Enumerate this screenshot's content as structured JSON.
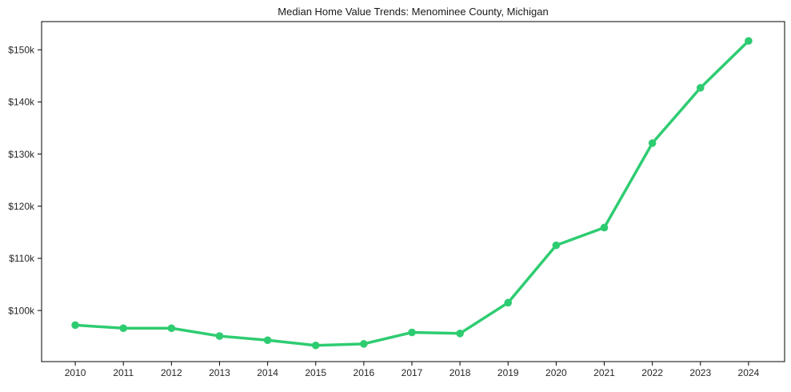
{
  "figure": {
    "background": "#ffffff"
  },
  "chart_data": {
    "type": "line",
    "title": "Median Home Value Trends: Menominee County, Michigan",
    "series": [
      {
        "name": "Median Home Value",
        "x": [
          2010,
          2011,
          2012,
          2013,
          2014,
          2015,
          2016,
          2017,
          2018,
          2019,
          2020,
          2021,
          2022,
          2023,
          2024
        ],
        "values": [
          97200,
          96600,
          96600,
          95100,
          94300,
          93300,
          93600,
          95800,
          95600,
          101500,
          112500,
          115900,
          132100,
          142700,
          151700
        ]
      }
    ],
    "x_ticks": [
      {
        "value": 2010,
        "label": "2010"
      },
      {
        "value": 2011,
        "label": "2011"
      },
      {
        "value": 2012,
        "label": "2012"
      },
      {
        "value": 2013,
        "label": "2013"
      },
      {
        "value": 2014,
        "label": "2014"
      },
      {
        "value": 2015,
        "label": "2015"
      },
      {
        "value": 2016,
        "label": "2016"
      },
      {
        "value": 2017,
        "label": "2017"
      },
      {
        "value": 2018,
        "label": "2018"
      },
      {
        "value": 2019,
        "label": "2019"
      },
      {
        "value": 2020,
        "label": "2020"
      },
      {
        "value": 2021,
        "label": "2021"
      },
      {
        "value": 2022,
        "label": "2022"
      },
      {
        "value": 2023,
        "label": "2023"
      },
      {
        "value": 2024,
        "label": "2024"
      }
    ],
    "y_ticks": [
      {
        "value": 100000,
        "label": "$100k"
      },
      {
        "value": 110000,
        "label": "$110k"
      },
      {
        "value": 120000,
        "label": "$120k"
      },
      {
        "value": 130000,
        "label": "$130k"
      },
      {
        "value": 140000,
        "label": "$140k"
      },
      {
        "value": 150000,
        "label": "$150k"
      }
    ],
    "xlim": [
      2009.3,
      2024.75
    ],
    "ylim": [
      90200,
      155400
    ],
    "grid": false,
    "legend": "none",
    "frame": true,
    "line_color": "#2ecc71",
    "marker": "circle",
    "marker_radius": 4.8,
    "line_width": 3.5,
    "axis_color": "#000000",
    "tick_label_color": "#262626",
    "title_color": "#1a1a1a"
  }
}
